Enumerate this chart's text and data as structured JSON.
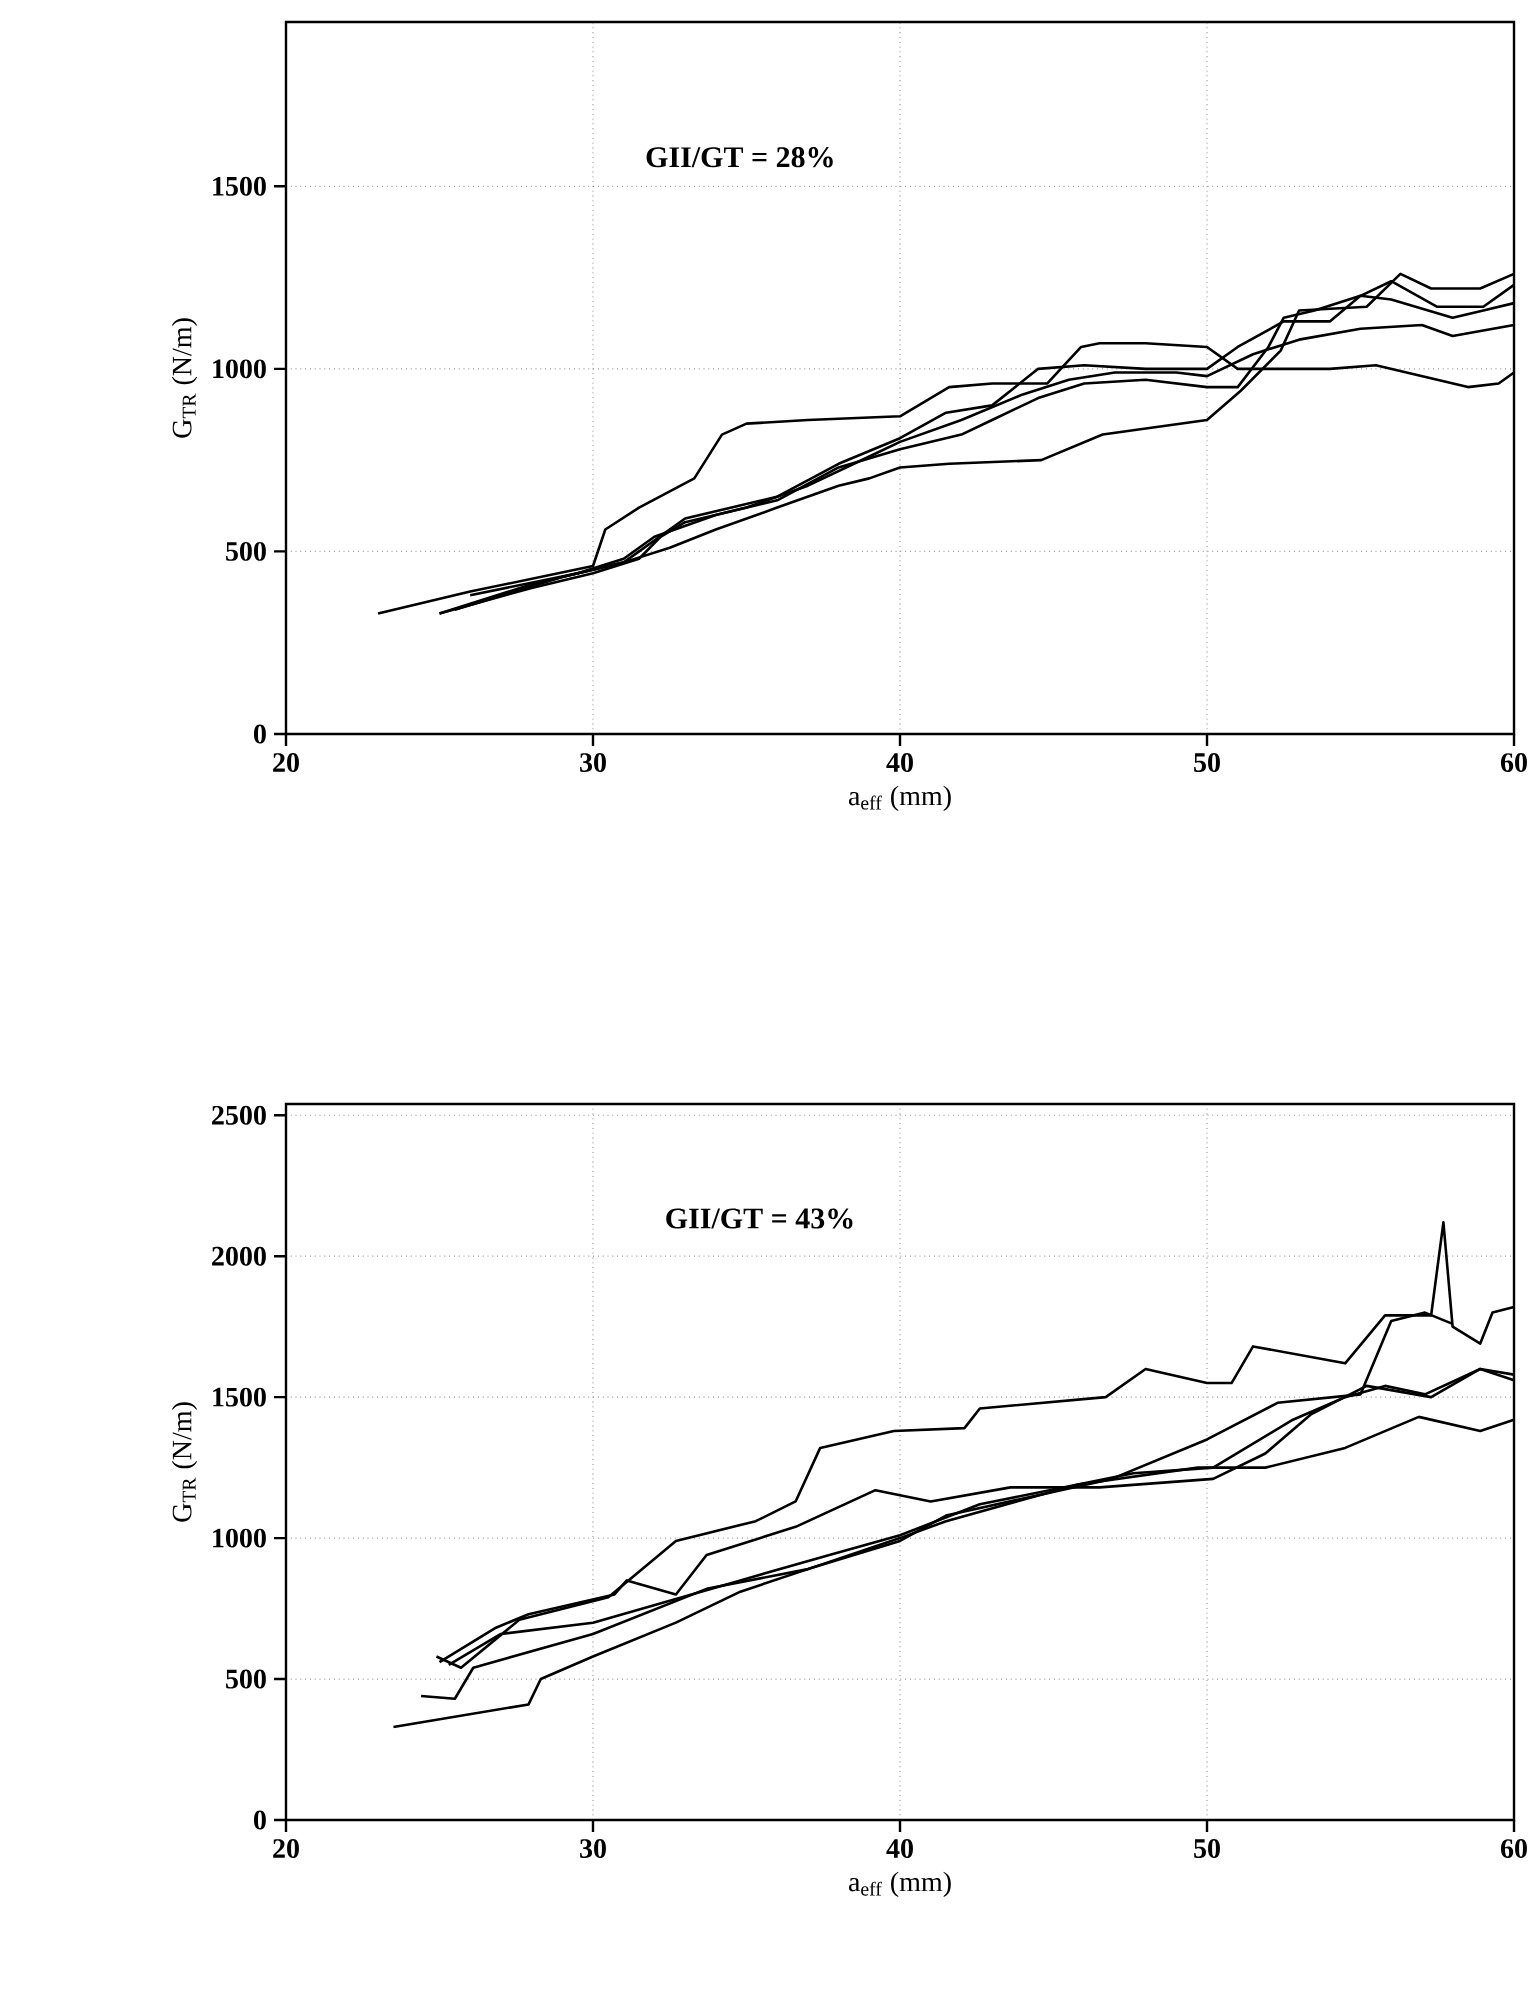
{
  "chart_data": [
    {
      "type": "line",
      "xlabel": "a$_{eff}$ (mm)",
      "ylabel": "G$_{TR}$ (N/m)",
      "annotations": [
        "GII/GT = 28%"
      ],
      "xlim": [
        20,
        60
      ],
      "ylim": [
        0,
        1950
      ],
      "xticks": [
        20,
        30,
        40,
        50,
        60
      ],
      "yticks": [
        0,
        500,
        1000,
        1500
      ],
      "grid": true,
      "series": [
        {
          "color": "#000000",
          "x": [
            23,
            26,
            30,
            30.4,
            31.5,
            33.3,
            34.2,
            35,
            37,
            40,
            41.6,
            43,
            44.8,
            45.9,
            46.5,
            48,
            50,
            51,
            52,
            54,
            55.5,
            57,
            58.5,
            59.5,
            60
          ],
          "values": [
            330,
            390,
            460,
            560,
            620,
            700,
            820,
            850,
            860,
            870,
            950,
            960,
            960,
            1060,
            1070,
            1070,
            1060,
            1000,
            1000,
            1000,
            1010,
            980,
            950,
            960,
            990
          ]
        },
        {
          "color": "#000000",
          "x": [
            25,
            28,
            31,
            32.5,
            34,
            36,
            38,
            39,
            40,
            41.6,
            44.6,
            46.6,
            50,
            51.1,
            52.4,
            53,
            55.2,
            56.3,
            57.3,
            58.9,
            60
          ],
          "values": [
            330,
            410,
            470,
            510,
            560,
            620,
            680,
            700,
            730,
            740,
            750,
            820,
            860,
            940,
            1050,
            1160,
            1170,
            1260,
            1220,
            1220,
            1260
          ]
        },
        {
          "color": "#000000",
          "x": [
            25,
            28,
            30,
            31.5,
            32.2,
            33,
            35,
            37,
            39,
            40,
            42,
            44,
            45.5,
            47,
            49,
            50,
            51.5,
            53,
            55,
            57,
            58,
            60
          ],
          "values": [
            330,
            400,
            440,
            480,
            540,
            580,
            620,
            680,
            760,
            800,
            860,
            930,
            970,
            990,
            990,
            980,
            1040,
            1080,
            1110,
            1120,
            1090,
            1120
          ]
        },
        {
          "color": "#000000",
          "x": [
            25.5,
            29,
            31,
            32,
            33,
            34.5,
            36,
            38,
            40,
            41.5,
            43,
            44.5,
            46,
            48,
            50,
            51,
            52.5,
            54,
            55,
            56,
            58,
            59,
            60
          ],
          "values": [
            340,
            430,
            470,
            530,
            590,
            620,
            650,
            740,
            810,
            880,
            900,
            1000,
            1010,
            1000,
            1000,
            1060,
            1130,
            1130,
            1200,
            1190,
            1140,
            1160,
            1180
          ]
        },
        {
          "color": "#000000",
          "x": [
            26,
            29.5,
            31,
            32,
            34,
            36,
            38,
            40,
            42,
            43,
            44.5,
            46,
            48,
            50,
            51,
            52,
            52.5,
            53.5,
            55,
            56,
            57.5,
            59,
            60
          ],
          "values": [
            380,
            440,
            480,
            540,
            600,
            640,
            730,
            780,
            820,
            860,
            920,
            960,
            970,
            950,
            950,
            1060,
            1140,
            1160,
            1200,
            1240,
            1170,
            1170,
            1230
          ]
        }
      ]
    },
    {
      "type": "line",
      "xlabel": "a$_{eff}$ (mm)",
      "ylabel": "G$_{TR}$ (N/m)",
      "annotations": [
        "GII/GT = 43%"
      ],
      "xlim": [
        20,
        60
      ],
      "ylim": [
        0,
        2540
      ],
      "xticks": [
        20,
        30,
        40,
        50,
        60
      ],
      "yticks": [
        0,
        500,
        1000,
        1500,
        2000,
        2500
      ],
      "grid": true,
      "series": [
        {
          "color": "#000000",
          "x": [
            23.5,
            27.9,
            28.3,
            30,
            32.7,
            34.8,
            37,
            40,
            41.5,
            45.8,
            49.7,
            51.9,
            54.5,
            56.9,
            58.9,
            60
          ],
          "values": [
            330,
            410,
            500,
            580,
            700,
            810,
            890,
            1000,
            1060,
            1190,
            1250,
            1250,
            1320,
            1430,
            1380,
            1420
          ]
        },
        {
          "color": "#000000",
          "x": [
            24.9,
            25.7,
            27.6,
            30.5,
            32.7,
            35.3,
            36.6,
            37.4,
            39.8,
            42.1,
            42.6,
            46.7,
            48,
            50,
            50.8,
            51.5,
            54.5,
            55.8,
            57.3,
            57.7,
            58,
            58.9,
            59.3,
            60
          ],
          "values": [
            580,
            540,
            710,
            790,
            990,
            1060,
            1130,
            1320,
            1380,
            1390,
            1460,
            1500,
            1600,
            1550,
            1550,
            1680,
            1620,
            1790,
            1790,
            2120,
            1750,
            1690,
            1800,
            1820
          ]
        },
        {
          "color": "#000000",
          "x": [
            25,
            26.8,
            27.9,
            30.7,
            31.1,
            32.7,
            33.7,
            36.6,
            39.2,
            41,
            43.6,
            46.5,
            50.2,
            51.9,
            53.4,
            55.2,
            57.3,
            58.9,
            60
          ],
          "values": [
            560,
            680,
            730,
            800,
            850,
            800,
            940,
            1040,
            1170,
            1130,
            1180,
            1180,
            1210,
            1300,
            1440,
            1540,
            1500,
            1600,
            1580
          ]
        },
        {
          "color": "#000000",
          "x": [
            24.4,
            25.5,
            26.1,
            30,
            33.7,
            37,
            40,
            41.5,
            46.9,
            50,
            52.3,
            55,
            56,
            57.1,
            58
          ],
          "values": [
            440,
            430,
            540,
            660,
            820,
            890,
            990,
            1080,
            1210,
            1350,
            1480,
            1510,
            1770,
            1800,
            1760
          ]
        },
        {
          "color": "#000000",
          "x": [
            25.3,
            27,
            30,
            34.8,
            37.7,
            40,
            42.6,
            47.6,
            50.2,
            52.8,
            54.5,
            55.8,
            57.1,
            58.9,
            60
          ],
          "values": [
            550,
            660,
            700,
            850,
            940,
            1010,
            1120,
            1230,
            1250,
            1420,
            1500,
            1540,
            1510,
            1600,
            1560
          ]
        }
      ]
    }
  ]
}
